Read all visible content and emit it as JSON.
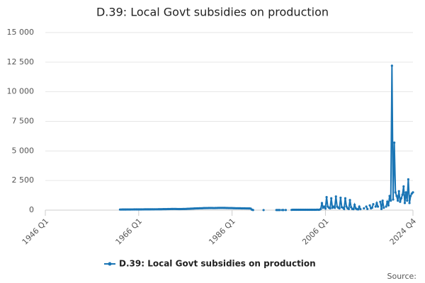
{
  "chart_data": {
    "type": "line",
    "title": "D.39: Local Govt subsidies on production",
    "source": "Source:",
    "categories": [
      "1946 Q1",
      null,
      null,
      null,
      null,
      null,
      null,
      null,
      null,
      null,
      null,
      null,
      null,
      null,
      null,
      null,
      null,
      null,
      null,
      null,
      null,
      null,
      null,
      null,
      null,
      null,
      null,
      null,
      null,
      null,
      null,
      null,
      null,
      null,
      null,
      null,
      null,
      null,
      null,
      null,
      null,
      null,
      null,
      null,
      null,
      null,
      null,
      null,
      null,
      null,
      null,
      null,
      null,
      null,
      null,
      null,
      null,
      null,
      null,
      null,
      null,
      null,
      null,
      null,
      null,
      null,
      null,
      null,
      null,
      null,
      null,
      null,
      null,
      null,
      null,
      null,
      null,
      null,
      null,
      null,
      "1966 Q1",
      null,
      null,
      null,
      null,
      null,
      null,
      null,
      null,
      null,
      null,
      null,
      null,
      null,
      null,
      null,
      null,
      null,
      null,
      null,
      null,
      null,
      null,
      null,
      null,
      null,
      null,
      null,
      null,
      null,
      null,
      null,
      null,
      null,
      null,
      null,
      null,
      null,
      null,
      null,
      null,
      null,
      null,
      null,
      null,
      null,
      null,
      null,
      null,
      null,
      null,
      null,
      null,
      null,
      null,
      null,
      null,
      null,
      null,
      null,
      null,
      null,
      null,
      null,
      null,
      null,
      null,
      null,
      null,
      null,
      null,
      null,
      null,
      null,
      null,
      null,
      null,
      null,
      null,
      null,
      "1986 Q1",
      null,
      null,
      null,
      null,
      null,
      null,
      null,
      null,
      null,
      null,
      null,
      null,
      null,
      null,
      null,
      null,
      null,
      null,
      null,
      null,
      null,
      null,
      null,
      null,
      null,
      null,
      null,
      null,
      null,
      null,
      null,
      null,
      null,
      null,
      null,
      null,
      null,
      null,
      null,
      null,
      null,
      null,
      null,
      null,
      null,
      null,
      null,
      null,
      null,
      null,
      null,
      null,
      null,
      null,
      null,
      null,
      null,
      null,
      null,
      null,
      null,
      null,
      null,
      null,
      null,
      null,
      null,
      null,
      null,
      null,
      null,
      null,
      null,
      null,
      null,
      null,
      null,
      null,
      null,
      "2006 Q1",
      null,
      null,
      null,
      null,
      null,
      null,
      null,
      null,
      null,
      null,
      null,
      null,
      null,
      null,
      null,
      null,
      null,
      null,
      null,
      null,
      null,
      null,
      null,
      null,
      null,
      null,
      null,
      null,
      null,
      null,
      null,
      null,
      null,
      null,
      null,
      null,
      null,
      null,
      null,
      null,
      null,
      null,
      null,
      null,
      null,
      null,
      null,
      null,
      null,
      null,
      null,
      null,
      null,
      null,
      null,
      null,
      null,
      null,
      null,
      null,
      null,
      null,
      null,
      null,
      null,
      null,
      null,
      null,
      null,
      null,
      null,
      null,
      null,
      null,
      "2024 Q4"
    ],
    "series": [
      {
        "name": "D.39: Local Govt subsidies on production",
        "color": "#1a75b5",
        "values": [
          null,
          null,
          null,
          null,
          null,
          null,
          null,
          null,
          null,
          null,
          null,
          null,
          null,
          null,
          null,
          null,
          null,
          null,
          null,
          null,
          null,
          null,
          null,
          null,
          null,
          null,
          null,
          null,
          null,
          null,
          null,
          null,
          null,
          null,
          null,
          null,
          null,
          null,
          null,
          null,
          null,
          null,
          null,
          null,
          null,
          null,
          null,
          null,
          null,
          null,
          null,
          null,
          null,
          null,
          null,
          null,
          null,
          null,
          null,
          null,
          null,
          null,
          null,
          null,
          50,
          50,
          52,
          52,
          53,
          53,
          55,
          55,
          56,
          56,
          57,
          57,
          58,
          58,
          60,
          60,
          60,
          62,
          62,
          63,
          63,
          65,
          65,
          66,
          66,
          68,
          68,
          70,
          70,
          70,
          72,
          72,
          72,
          74,
          75,
          76,
          78,
          80,
          80,
          82,
          85,
          88,
          90,
          92,
          95,
          98,
          100,
          100,
          95,
          92,
          90,
          90,
          90,
          92,
          95,
          98,
          100,
          105,
          110,
          115,
          120,
          125,
          130,
          135,
          140,
          145,
          150,
          150,
          155,
          160,
          160,
          165,
          170,
          170,
          175,
          175,
          180,
          180,
          180,
          180,
          175,
          175,
          180,
          180,
          185,
          185,
          190,
          190,
          190,
          185,
          185,
          180,
          180,
          175,
          175,
          170,
          170,
          165,
          165,
          160,
          160,
          160,
          155,
          155,
          150,
          150,
          150,
          150,
          145,
          145,
          140,
          140,
          130,
          40,
          10,
          null,
          null,
          null,
          null,
          null,
          null,
          null,
          null,
          5,
          null,
          null,
          null,
          null,
          null,
          null,
          null,
          null,
          null,
          null,
          10,
          10,
          10,
          10,
          null,
          10,
          10,
          null,
          10,
          null,
          null,
          null,
          null,
          20,
          30,
          30,
          30,
          30,
          30,
          30,
          30,
          30,
          30,
          30,
          30,
          30,
          30,
          30,
          30,
          30,
          30,
          30,
          30,
          30,
          30,
          40,
          30,
          40,
          100,
          600,
          200,
          300,
          150,
          1100,
          300,
          200,
          150,
          1000,
          200,
          300,
          200,
          1150,
          300,
          200,
          150,
          1050,
          250,
          200,
          100,
          1000,
          300,
          150,
          100,
          850,
          250,
          100,
          80,
          450,
          150,
          80,
          60,
          300,
          80,
          null,
          null,
          150,
          null,
          300,
          100,
          null,
          400,
          150,
          200,
          500,
          null,
          300,
          600,
          300,
          null,
          700,
          100,
          800,
          200,
          null,
          300,
          700,
          400,
          1200,
          800,
          12200,
          900,
          5700,
          1500,
          1200,
          800,
          1600,
          700,
          1000,
          1300,
          2000,
          600,
          1500,
          800,
          2600,
          600,
          1200,
          1400,
          1500
        ]
      }
    ],
    "ylim": [
      0,
      15000
    ],
    "yticks": [
      0,
      {
        "value": 2500,
        "label": "2 500"
      },
      {
        "value": 5000,
        "label": "5 000"
      },
      {
        "value": 7500,
        "label": "7 500"
      },
      {
        "value": 10000,
        "label": "10 000"
      },
      {
        "value": 12500,
        "label": "12 500"
      },
      {
        "value": 15000,
        "label": "15 000"
      }
    ],
    "grid": true
  }
}
